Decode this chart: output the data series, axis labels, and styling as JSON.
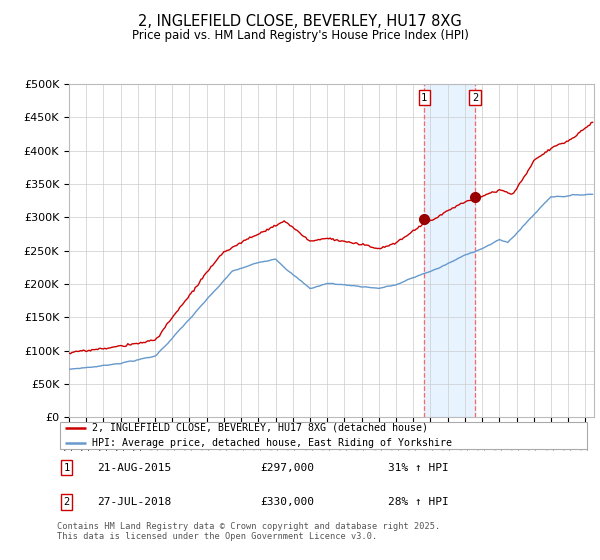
{
  "title": "2, INGLEFIELD CLOSE, BEVERLEY, HU17 8XG",
  "subtitle": "Price paid vs. HM Land Registry's House Price Index (HPI)",
  "ylabel_ticks": [
    "£0",
    "£50K",
    "£100K",
    "£150K",
    "£200K",
    "£250K",
    "£300K",
    "£350K",
    "£400K",
    "£450K",
    "£500K"
  ],
  "ytick_values": [
    0,
    50000,
    100000,
    150000,
    200000,
    250000,
    300000,
    350000,
    400000,
    450000,
    500000
  ],
  "ylim": [
    0,
    500000
  ],
  "xlim_start": 1995.0,
  "xlim_end": 2025.5,
  "sale1_date": 2015.64,
  "sale1_price": 297000,
  "sale1_label": "1",
  "sale1_text": "21-AUG-2015",
  "sale1_price_text": "£297,000",
  "sale1_hpi_text": "31% ↑ HPI",
  "sale2_date": 2018.58,
  "sale2_price": 330000,
  "sale2_label": "2",
  "sale2_text": "27-JUL-2018",
  "sale2_price_text": "£330,000",
  "sale2_hpi_text": "28% ↑ HPI",
  "line1_color": "#cc0000",
  "line2_color": "#6699cc",
  "shade_color": "#ddeeff",
  "sale_marker_color": "#cc0000",
  "vline_color": "#ff6666",
  "legend1_label": "2, INGLEFIELD CLOSE, BEVERLEY, HU17 8XG (detached house)",
  "legend2_label": "HPI: Average price, detached house, East Riding of Yorkshire",
  "footnote": "Contains HM Land Registry data © Crown copyright and database right 2025.\nThis data is licensed under the Open Government Licence v3.0.",
  "background_color": "#ffffff",
  "grid_color": "#cccccc"
}
